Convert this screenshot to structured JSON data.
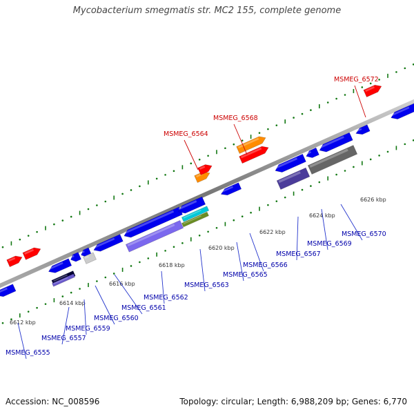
{
  "title": "Mycobacterium smegmatis str. MC2 155, complete genome",
  "footer": {
    "accession": "Accession: NC_008596",
    "summary": "Topology: circular; Length: 6,988,209 bp; Genes: 6,770"
  },
  "colors": {
    "forward_gene": "#ff0000",
    "reverse_gene": "#0000ee",
    "forward_label": "#cc0000",
    "reverse_label": "#0000aa",
    "highlight_gene": "#ff8c00",
    "backbone": "#888888",
    "tick": "#117711"
  },
  "scale_ticks": [
    "6612 kbp",
    "6614 kbp",
    "6616 kbp",
    "6618 kbp",
    "6620 kbp",
    "6622 kbp",
    "6624 kbp",
    "6626 kbp"
  ],
  "forward_labels": [
    "MSMEG_6564",
    "MSMEG_6568",
    "MSMEG_6572"
  ],
  "reverse_labels": [
    "MSMEG_6555",
    "MSMEG_6557",
    "MSMEG_6559",
    "MSMEG_6560",
    "MSMEG_6561",
    "MSMEG_6562",
    "MSMEG_6563",
    "MSMEG_6565",
    "MSMEG_6566",
    "MSMEG_6567",
    "MSMEG_6569",
    "MSMEG_6570"
  ]
}
